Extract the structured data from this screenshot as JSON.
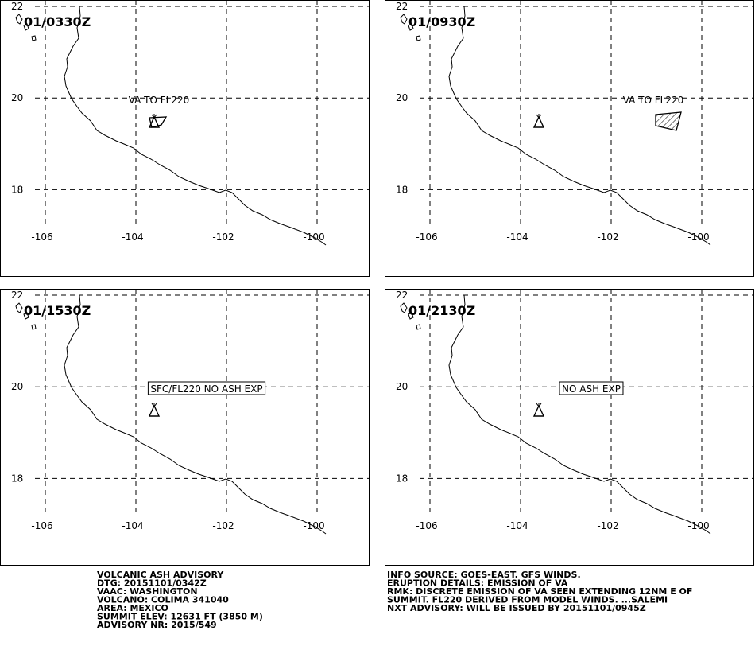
{
  "map": {
    "lat_ticks": [
      22,
      20,
      18
    ],
    "lon_ticks": [
      -106,
      -104,
      -102,
      -100
    ]
  },
  "panels": [
    {
      "time": "01/0330Z",
      "annotation": "VA TO FL220",
      "boxed": false
    },
    {
      "time": "01/0930Z",
      "annotation": "VA TO FL220",
      "boxed": false
    },
    {
      "time": "01/1530Z",
      "annotation": "SFC/FL220 NO ASH EXP",
      "boxed": true
    },
    {
      "time": "01/2130Z",
      "annotation": "NO ASH EXP",
      "boxed": true
    }
  ],
  "advisory": {
    "left": [
      "VOLCANIC ASH ADVISORY",
      "DTG: 20151101/0342Z",
      "VAAC: WASHINGTON",
      "VOLCANO: COLIMA 341040",
      "AREA: MEXICO",
      "SUMMIT ELEV: 12631 FT (3850 M)",
      "ADVISORY NR: 2015/549"
    ],
    "right": [
      "INFO SOURCE: GOES-EAST. GFS WINDS.",
      "ERUPTION DETAILS: EMISSION OF VA",
      "RMK: DISCRETE EMISSION OF VA SEEN EXTENDING 12NM E OF",
      "SUMMIT. FL220 DERIVED FROM MODEL WINDS. ...SALEMI",
      "NXT ADVISORY: WILL BE ISSUED BY 20151101/0945Z"
    ]
  }
}
